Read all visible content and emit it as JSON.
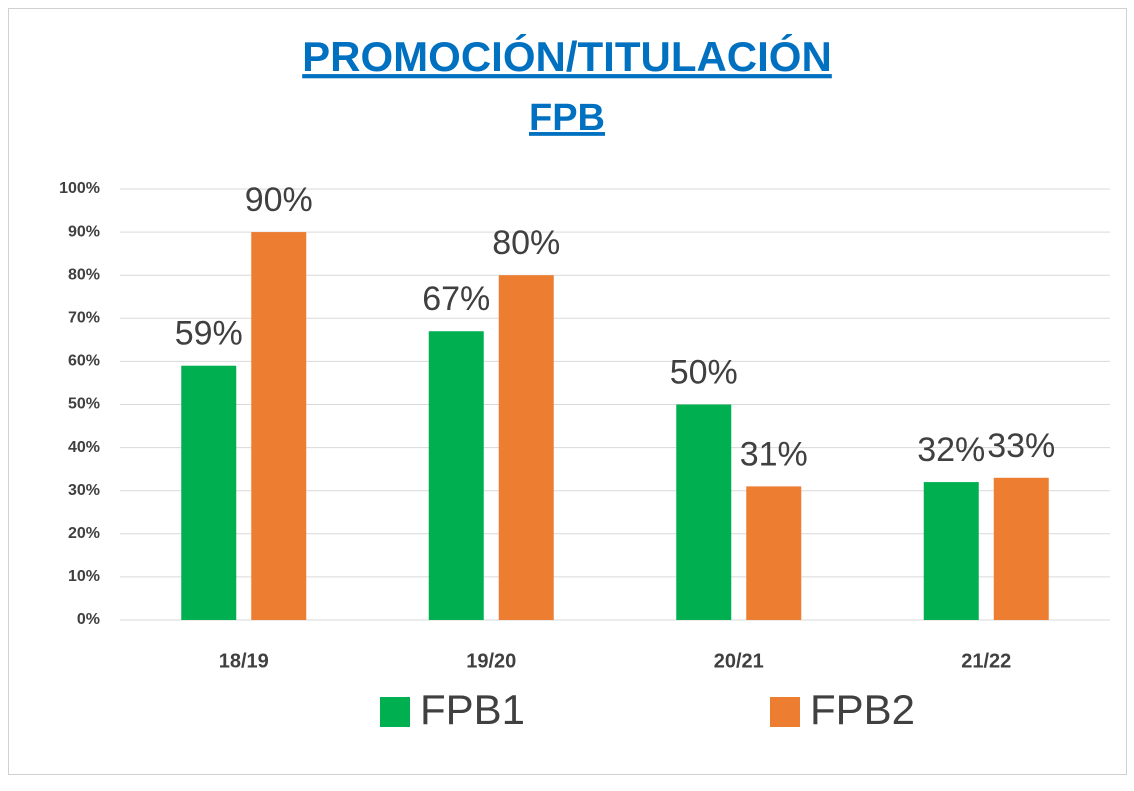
{
  "chart_data": {
    "type": "bar",
    "title": "PROMOCIÓN/TITULACIÓN",
    "subtitle": "FPB",
    "categories": [
      "18/19",
      "19/20",
      "20/21",
      "21/22"
    ],
    "series": [
      {
        "name": "FPB1",
        "color": "#00b050",
        "values": [
          59,
          67,
          50,
          32
        ],
        "value_labels": [
          "59%",
          "67%",
          "50%",
          "32%"
        ]
      },
      {
        "name": "FPB2",
        "color": "#ed7d31",
        "values": [
          90,
          80,
          31,
          33
        ],
        "value_labels": [
          "90%",
          "80%",
          "31%",
          "33%"
        ]
      }
    ],
    "ylim": [
      0,
      100
    ],
    "yticks": [
      {
        "value": 0,
        "label": "0%"
      },
      {
        "value": 10,
        "label": "10%"
      },
      {
        "value": 20,
        "label": "20%"
      },
      {
        "value": 30,
        "label": "30%"
      },
      {
        "value": 40,
        "label": "40%"
      },
      {
        "value": 50,
        "label": "50%"
      },
      {
        "value": 60,
        "label": "60%"
      },
      {
        "value": 70,
        "label": "70%"
      },
      {
        "value": 80,
        "label": "80%"
      },
      {
        "value": 90,
        "label": "90%"
      },
      {
        "value": 100,
        "label": "100%"
      }
    ],
    "grid": true,
    "legend": "bottom"
  }
}
